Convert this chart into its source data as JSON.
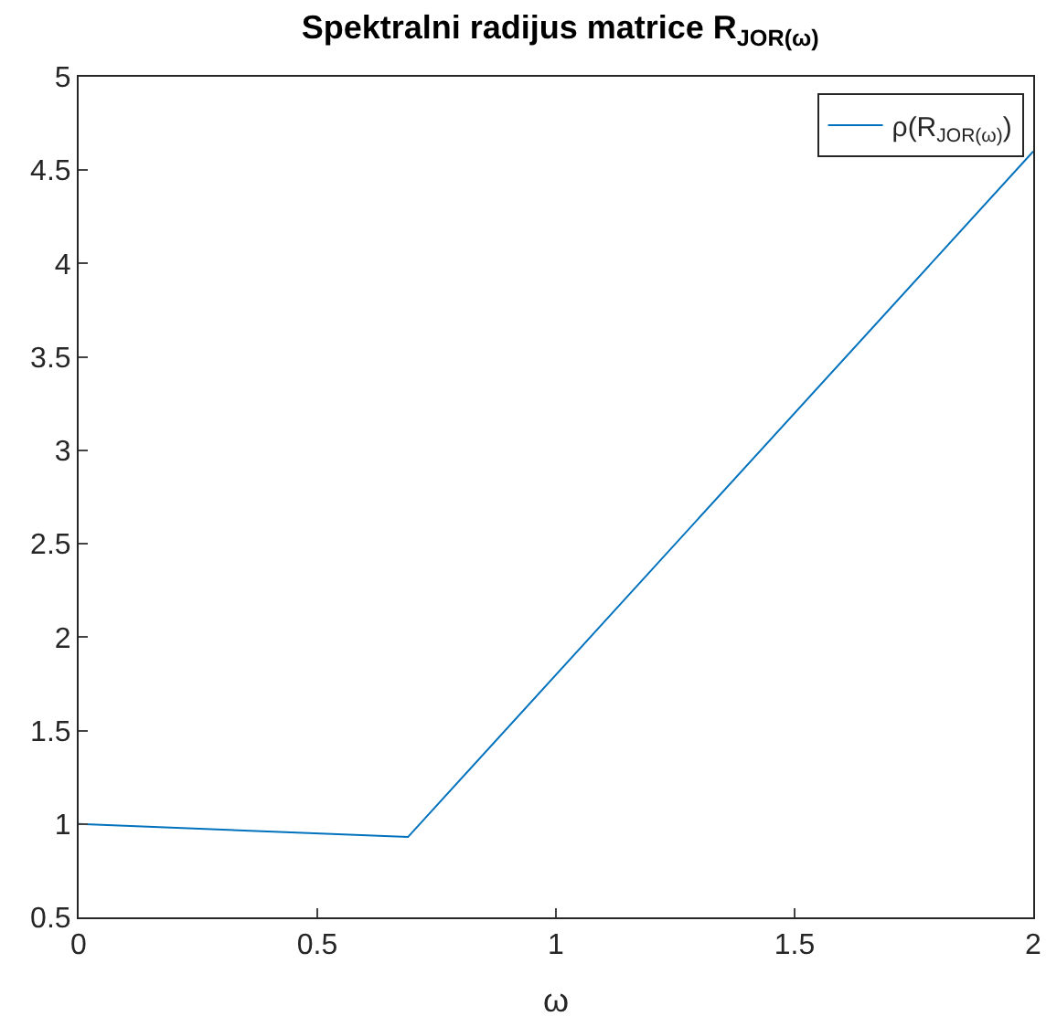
{
  "chart_data": {
    "type": "line",
    "title": "Spektralni radijus matrice R$_{JOR(ω)}$",
    "xlabel": "ω",
    "series": [
      {
        "name": "ρ(R$_{JOR(ω)}$)",
        "color": "#0072bd",
        "x": [
          0,
          0.69,
          2
        ],
        "values": [
          1,
          0.93,
          4.6
        ]
      }
    ],
    "xlim": [
      0,
      2
    ],
    "xticks": [
      0,
      0.5,
      1,
      1.5,
      2
    ],
    "ylim": [
      0.5,
      5
    ],
    "yticks": [
      0.5,
      1,
      1.5,
      2,
      2.5,
      3,
      3.5,
      4,
      4.5,
      5
    ],
    "legend": "top right",
    "marker": "none",
    "line_style": "solid"
  }
}
